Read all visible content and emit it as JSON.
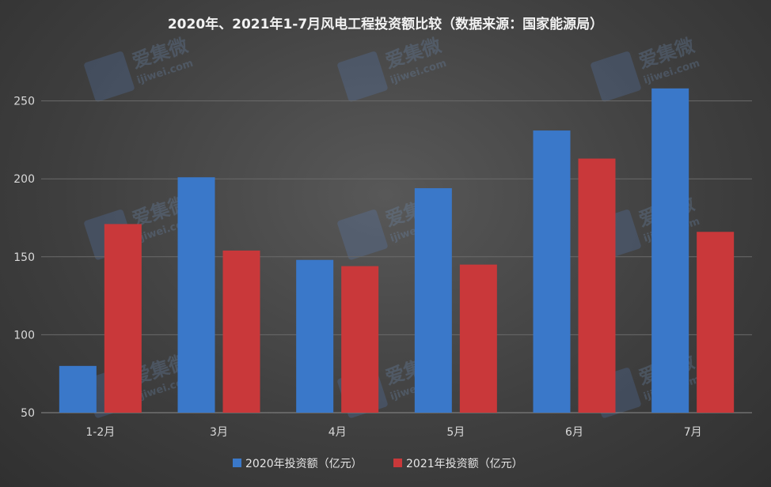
{
  "chart_data": {
    "type": "bar",
    "title": "2020年、2021年1-7月风电工程投资额比较（数据来源：国家能源局）",
    "categories": [
      "1-2月",
      "3月",
      "4月",
      "5月",
      "6月",
      "7月"
    ],
    "series": [
      {
        "name": "2020年投资额（亿元）",
        "color": "#3a78c9",
        "values": [
          80,
          201,
          148,
          194,
          231,
          258
        ]
      },
      {
        "name": "2021年投资额（亿元）",
        "color": "#c9383a",
        "values": [
          171,
          154,
          144,
          145,
          213,
          166
        ]
      }
    ],
    "ylim": [
      50,
      275
    ],
    "yticks": [
      50,
      100,
      150,
      200,
      250
    ],
    "grid": true,
    "legend": "bottom",
    "watermark": {
      "brand": "爱集微",
      "site": "ijiwei.com"
    }
  }
}
